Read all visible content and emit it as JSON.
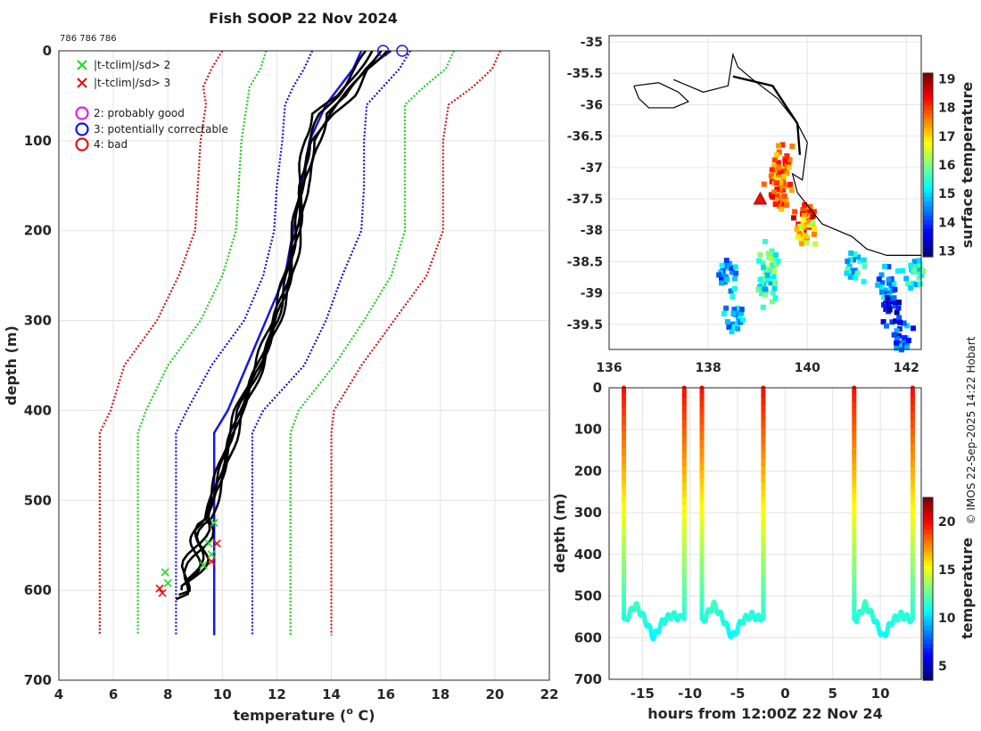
{
  "chart_data": [
    {
      "type": "line",
      "title": "Fish SOOP 22 Nov 2024",
      "id_text": "786 786 786",
      "xlabel": "temperature (",
      "xlabel_sup": "o",
      "xlabel_unit": " C)",
      "ylabel": "depth (m)",
      "xlim": [
        4,
        22
      ],
      "ylim": [
        700,
        0
      ],
      "xticks": [
        4,
        6,
        8,
        10,
        12,
        14,
        16,
        18,
        20,
        22
      ],
      "yticks": [
        0,
        100,
        200,
        300,
        400,
        500,
        600,
        700
      ],
      "legend": [
        {
          "symbol": "x",
          "color": "#1fdc1f",
          "label": "|t-tclim|/sd> 2"
        },
        {
          "symbol": "x",
          "color": "#e81010",
          "label": "|t-tclim|/sd> 3"
        },
        {
          "symbol": "o",
          "color": "#e020e0",
          "label": "2: probably good"
        },
        {
          "symbol": "o",
          "color": "#1515e8",
          "label": "3: potentially correctable"
        },
        {
          "symbol": "o",
          "color": "#e81010",
          "label": "4: bad"
        }
      ],
      "climatology": {
        "depth": [
          0,
          20,
          40,
          60,
          100,
          150,
          200,
          250,
          300,
          350,
          400,
          425,
          650
        ],
        "mean": [
          15.1,
          14.8,
          14.3,
          13.8,
          13.2,
          12.9,
          12.6,
          12.3,
          11.6,
          10.9,
          10.2,
          9.7,
          9.7
        ],
        "lines": [
          {
            "name": "mean-3sd",
            "color": "#cc1a1a",
            "values": [
              10.0,
              9.6,
              9.3,
              9.4,
              9.2,
              9.1,
              9.0,
              8.4,
              7.6,
              6.4,
              5.9,
              5.5,
              5.5
            ]
          },
          {
            "name": "mean-2sd",
            "color": "#22cc22",
            "values": [
              11.6,
              11.4,
              11.0,
              10.9,
              10.7,
              10.6,
              10.5,
              10.0,
              9.2,
              8.0,
              7.2,
              6.9,
              6.9
            ]
          },
          {
            "name": "mean-1sd",
            "color": "#1515cc",
            "values": [
              13.3,
              13.0,
              12.6,
              12.3,
              12.2,
              12.0,
              11.9,
              11.5,
              10.8,
              9.6,
              8.7,
              8.3,
              8.3
            ]
          },
          {
            "name": "mean+1sd",
            "color": "#1515cc",
            "values": [
              16.9,
              16.5,
              15.9,
              15.3,
              15.2,
              15.2,
              15.1,
              14.4,
              13.8,
              13.0,
              11.5,
              11.1,
              11.1
            ]
          },
          {
            "name": "mean+2sd",
            "color": "#22cc22",
            "values": [
              18.5,
              18.2,
              17.4,
              16.7,
              16.7,
              16.7,
              16.7,
              16.2,
              15.2,
              14.1,
              12.8,
              12.5,
              12.5
            ]
          },
          {
            "name": "mean+3sd",
            "color": "#cc1a1a",
            "values": [
              20.2,
              19.9,
              19.2,
              18.3,
              18.1,
              18.1,
              18.1,
              17.5,
              16.3,
              15.1,
              14.1,
              14.0,
              14.0
            ]
          }
        ]
      },
      "profiles": [
        {
          "depth": [
            0,
            20,
            50,
            70,
            100,
            150,
            200,
            250,
            300,
            350,
            400,
            450,
            500,
            540,
            570,
            600
          ],
          "temp": [
            15.5,
            15.0,
            14.3,
            13.3,
            13.0,
            12.8,
            12.6,
            12.3,
            11.8,
            11.2,
            10.5,
            10.0,
            9.5,
            9.2,
            8.9,
            8.5
          ]
        },
        {
          "depth": [
            0,
            20,
            50,
            70,
            100,
            150,
            200,
            250,
            300,
            350,
            400,
            450,
            500,
            540,
            575,
            610
          ],
          "temp": [
            16.2,
            15.4,
            14.8,
            14.1,
            13.4,
            13.0,
            12.8,
            12.5,
            12.0,
            11.4,
            10.7,
            10.2,
            9.7,
            9.3,
            9.0,
            8.3
          ]
        },
        {
          "depth": [
            0,
            20,
            50,
            70,
            100,
            150,
            200,
            250,
            300,
            350,
            400,
            450,
            500,
            540,
            565,
            595
          ],
          "temp": [
            15.8,
            15.2,
            14.6,
            13.8,
            13.6,
            13.1,
            12.9,
            12.6,
            12.1,
            11.5,
            10.8,
            10.3,
            9.8,
            9.4,
            9.2,
            8.7
          ]
        },
        {
          "depth": [
            0,
            20,
            50,
            70,
            100,
            150,
            200,
            250,
            300,
            350,
            400,
            450,
            500,
            540,
            580,
            605
          ],
          "temp": [
            15.3,
            14.9,
            14.2,
            13.6,
            13.2,
            12.9,
            12.7,
            12.4,
            11.9,
            11.3,
            10.6,
            10.1,
            9.6,
            9.1,
            8.8,
            8.4
          ]
        },
        {
          "depth": [
            0,
            20,
            50,
            70,
            100,
            150,
            200,
            250,
            300,
            350,
            400,
            450,
            500,
            540,
            570,
            590
          ],
          "temp": [
            16.0,
            15.3,
            14.5,
            13.9,
            13.3,
            12.9,
            12.7,
            12.4,
            12.0,
            11.4,
            10.6,
            10.1,
            9.6,
            9.3,
            8.9,
            8.8
          ]
        }
      ],
      "circle_markers": [
        {
          "temp": 15.9,
          "depth": 0,
          "color": "#1515e8"
        },
        {
          "temp": 16.6,
          "depth": 0,
          "color": "#1515e8"
        }
      ],
      "flag_markers": [
        {
          "temp": 7.9,
          "depth": 580,
          "color": "#1fdc1f"
        },
        {
          "temp": 8.0,
          "depth": 592,
          "color": "#1fdc1f"
        },
        {
          "temp": 9.3,
          "depth": 572,
          "color": "#1fdc1f"
        },
        {
          "temp": 9.5,
          "depth": 548,
          "color": "#1fdc1f"
        },
        {
          "temp": 9.6,
          "depth": 560,
          "color": "#1fdc1f"
        },
        {
          "temp": 9.7,
          "depth": 525,
          "color": "#1fdc1f"
        },
        {
          "temp": 7.7,
          "depth": 598,
          "color": "#e81010"
        },
        {
          "temp": 7.8,
          "depth": 603,
          "color": "#e81010"
        },
        {
          "temp": 9.8,
          "depth": 548,
          "color": "#e81010"
        },
        {
          "temp": 9.6,
          "depth": 568,
          "color": "#e81010"
        }
      ]
    },
    {
      "type": "heatmap",
      "xlim": [
        136,
        142.3
      ],
      "ylim": [
        -39.9,
        -34.9
      ],
      "xticks": [
        136,
        138,
        140,
        142
      ],
      "yticks": [
        -35,
        -35.5,
        -36,
        -36.5,
        -37,
        -37.5,
        -38,
        -38.5,
        -39,
        -39.5
      ],
      "colorbar": {
        "label": "surface temperature",
        "ticks": [
          13,
          14,
          15,
          16,
          17,
          18,
          19
        ],
        "range": [
          12.8,
          19.2
        ]
      },
      "coastline": [
        [
          137.3,
          -35.6
        ],
        [
          137.9,
          -35.8
        ],
        [
          138.4,
          -35.7
        ],
        [
          138.5,
          -35.2
        ],
        [
          138.6,
          -35.4
        ],
        [
          138.9,
          -35.6
        ],
        [
          139.4,
          -35.9
        ],
        [
          139.8,
          -36.3
        ],
        [
          140.0,
          -36.6
        ],
        [
          139.9,
          -37.2
        ],
        [
          139.7,
          -37.1
        ],
        [
          139.8,
          -37.4
        ],
        [
          140.3,
          -37.9
        ],
        [
          140.9,
          -38.1
        ],
        [
          141.2,
          -38.3
        ],
        [
          141.6,
          -38.4
        ],
        [
          142.0,
          -38.4
        ],
        [
          142.3,
          -38.4
        ]
      ],
      "coastline_inner": [
        [
          138.5,
          -35.55
        ],
        [
          139.3,
          -35.7
        ],
        [
          139.8,
          -36.3
        ],
        [
          139.85,
          -36.8
        ]
      ],
      "island": [
        [
          136.5,
          -35.7
        ],
        [
          137.0,
          -35.65
        ],
        [
          137.4,
          -35.8
        ],
        [
          137.6,
          -35.95
        ],
        [
          137.3,
          -36.05
        ],
        [
          136.8,
          -36.05
        ],
        [
          136.6,
          -35.9
        ],
        [
          136.5,
          -35.7
        ]
      ],
      "sst_patches": [
        {
          "lon": 139.5,
          "lat": -36.85,
          "temp": 17.8
        },
        {
          "lon": 139.3,
          "lat": -37.15,
          "temp": 17.6
        },
        {
          "lon": 139.45,
          "lat": -37.45,
          "temp": 17.9
        },
        {
          "lon": 139.9,
          "lat": -37.7,
          "temp": 18.1
        },
        {
          "lon": 139.9,
          "lat": -38.05,
          "temp": 16.9
        },
        {
          "lon": 139.2,
          "lat": -38.4,
          "temp": 15.7
        },
        {
          "lon": 139.1,
          "lat": -38.9,
          "temp": 15.3
        },
        {
          "lon": 141.6,
          "lat": -38.8,
          "temp": 14.6
        },
        {
          "lon": 141.6,
          "lat": -39.2,
          "temp": 13.6
        },
        {
          "lon": 141.9,
          "lat": -39.7,
          "temp": 14.2
        },
        {
          "lon": 142.1,
          "lat": -38.6,
          "temp": 15.3
        },
        {
          "lon": 140.9,
          "lat": -38.6,
          "temp": 15.0
        },
        {
          "lon": 138.5,
          "lat": -39.3,
          "temp": 14.8
        },
        {
          "lon": 138.3,
          "lat": -38.7,
          "temp": 14.5
        }
      ],
      "track_marker": {
        "lon": 139.05,
        "lat": -37.5,
        "color": "#e81010"
      }
    },
    {
      "type": "scatter",
      "xlabel": "hours from 12:00Z 22 Nov 24",
      "ylabel": "depth (m)",
      "xlim": [
        -18.5,
        14.3
      ],
      "ylim": [
        700,
        0
      ],
      "xticks": [
        -15,
        -10,
        -5,
        0,
        5,
        10
      ],
      "yticks": [
        0,
        100,
        200,
        300,
        400,
        500,
        600,
        700
      ],
      "colorbar": {
        "label": "temperature",
        "ticks": [
          5,
          10,
          15,
          20
        ],
        "range": [
          3.5,
          22.5
        ]
      },
      "tows": [
        {
          "descent": -17.0,
          "ascent": -10.6
        },
        {
          "descent": -8.8,
          "ascent": -2.3
        },
        {
          "descent": 7.2,
          "ascent": 13.4
        }
      ],
      "bottom_depth": [
        555,
        520,
        555,
        600,
        560,
        545,
        555
      ]
    }
  ],
  "credit": "© IMOS 22-Sep-2025 14:22 Hobart"
}
